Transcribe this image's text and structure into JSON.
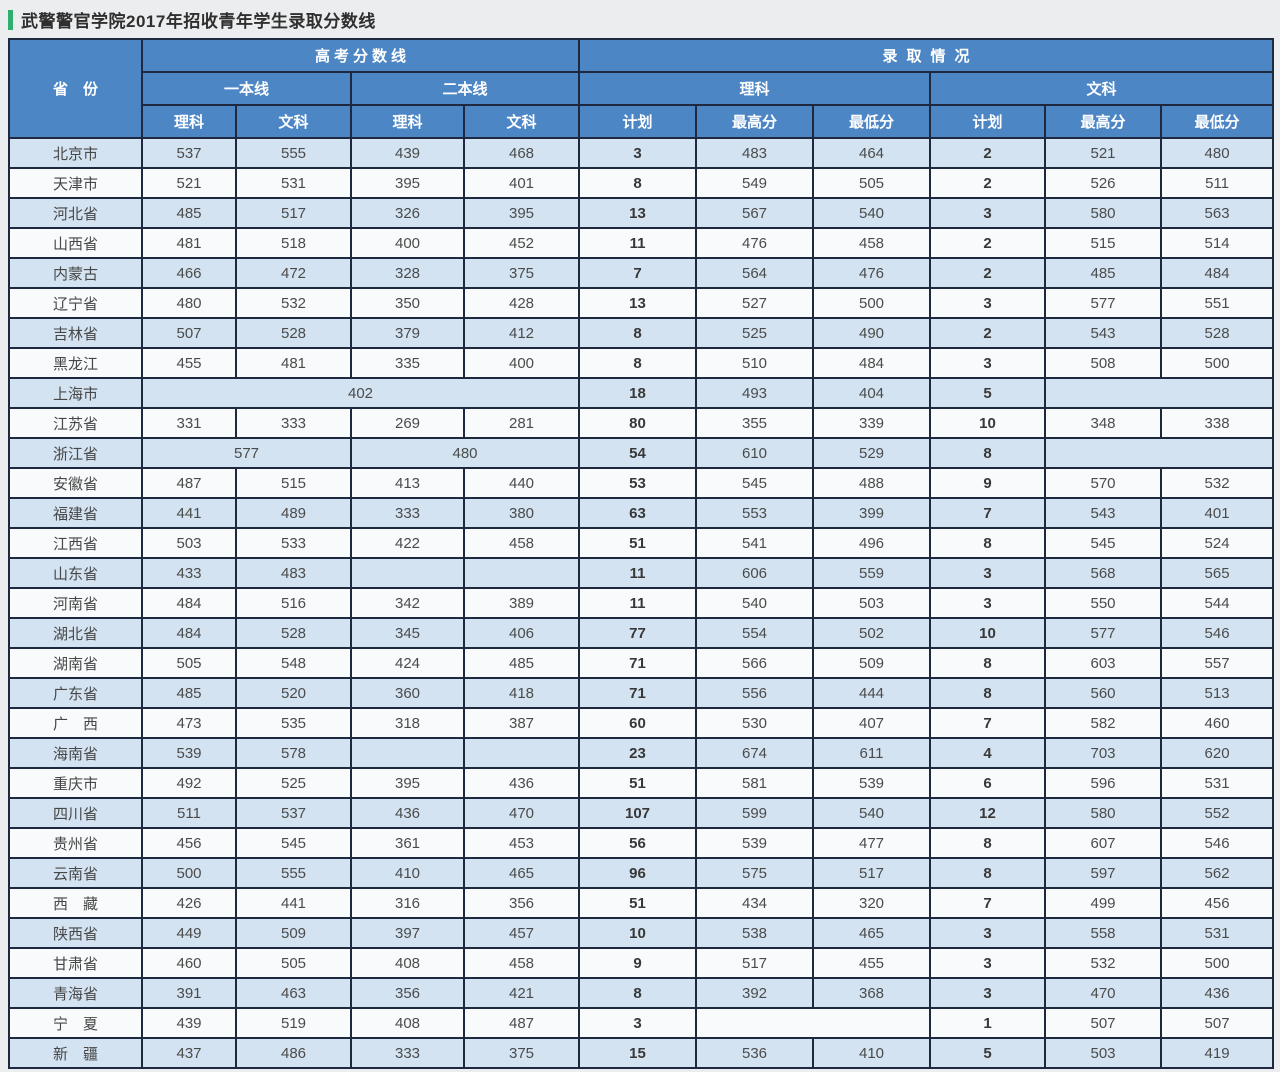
{
  "page_title": "武警警官学院2017年招收青年学生录取分数线",
  "colors": {
    "title_accent_green": "#2fae70",
    "header_blue": "#4d86c5",
    "border_navy": "#1e2940",
    "row_light_blue": "#d3e3f2",
    "row_white": "#f8fafb",
    "page_background": "#ecedef"
  },
  "chart_data": {
    "type": "table",
    "title": "武警警官学院2017年招收青年学生录取分数线",
    "header": {
      "province": "省　份",
      "gaokao_section": "高考分数线",
      "admission_section": "录取情况",
      "first_tier_line": "一本线",
      "second_tier_line": "二本线",
      "science": "理科",
      "arts": "文科",
      "plan": "计划",
      "highest_score": "最高分",
      "lowest_score": "最低分"
    },
    "column_order": [
      "省份",
      "一本线理科",
      "一本线文科",
      "二本线理科",
      "二本线文科",
      "录取理科计划",
      "录取理科最高分",
      "录取理科最低分",
      "录取文科计划",
      "录取文科最高分",
      "录取文科最低分"
    ],
    "rows": [
      {
        "name": "北京市",
        "cells": [
          {
            "t": "537"
          },
          {
            "t": "555"
          },
          {
            "t": "439"
          },
          {
            "t": "468"
          },
          {
            "t": "3"
          },
          {
            "t": "483"
          },
          {
            "t": "464"
          },
          {
            "t": "2"
          },
          {
            "t": "521"
          },
          {
            "t": "480"
          }
        ]
      },
      {
        "name": "天津市",
        "cells": [
          {
            "t": "521"
          },
          {
            "t": "531"
          },
          {
            "t": "395"
          },
          {
            "t": "401"
          },
          {
            "t": "8"
          },
          {
            "t": "549"
          },
          {
            "t": "505"
          },
          {
            "t": "2"
          },
          {
            "t": "526"
          },
          {
            "t": "511"
          }
        ]
      },
      {
        "name": "河北省",
        "cells": [
          {
            "t": "485"
          },
          {
            "t": "517"
          },
          {
            "t": "326"
          },
          {
            "t": "395"
          },
          {
            "t": "13"
          },
          {
            "t": "567"
          },
          {
            "t": "540"
          },
          {
            "t": "3"
          },
          {
            "t": "580"
          },
          {
            "t": "563"
          }
        ]
      },
      {
        "name": "山西省",
        "cells": [
          {
            "t": "481"
          },
          {
            "t": "518"
          },
          {
            "t": "400"
          },
          {
            "t": "452"
          },
          {
            "t": "11"
          },
          {
            "t": "476"
          },
          {
            "t": "458"
          },
          {
            "t": "2"
          },
          {
            "t": "515"
          },
          {
            "t": "514"
          }
        ]
      },
      {
        "name": "内蒙古",
        "cells": [
          {
            "t": "466"
          },
          {
            "t": "472"
          },
          {
            "t": "328"
          },
          {
            "t": "375"
          },
          {
            "t": "7"
          },
          {
            "t": "564"
          },
          {
            "t": "476"
          },
          {
            "t": "2"
          },
          {
            "t": "485"
          },
          {
            "t": "484"
          }
        ]
      },
      {
        "name": "辽宁省",
        "cells": [
          {
            "t": "480"
          },
          {
            "t": "532"
          },
          {
            "t": "350"
          },
          {
            "t": "428"
          },
          {
            "t": "13"
          },
          {
            "t": "527"
          },
          {
            "t": "500"
          },
          {
            "t": "3"
          },
          {
            "t": "577"
          },
          {
            "t": "551"
          }
        ]
      },
      {
        "name": "吉林省",
        "cells": [
          {
            "t": "507"
          },
          {
            "t": "528"
          },
          {
            "t": "379"
          },
          {
            "t": "412"
          },
          {
            "t": "8"
          },
          {
            "t": "525"
          },
          {
            "t": "490"
          },
          {
            "t": "2"
          },
          {
            "t": "543"
          },
          {
            "t": "528"
          }
        ]
      },
      {
        "name": "黑龙江",
        "cells": [
          {
            "t": "455"
          },
          {
            "t": "481"
          },
          {
            "t": "335"
          },
          {
            "t": "400"
          },
          {
            "t": "8"
          },
          {
            "t": "510"
          },
          {
            "t": "484"
          },
          {
            "t": "3"
          },
          {
            "t": "508"
          },
          {
            "t": "500"
          }
        ]
      },
      {
        "name": "上海市",
        "cells": [
          {
            "t": "402",
            "s": 4
          },
          {
            "t": "18"
          },
          {
            "t": "493"
          },
          {
            "t": "404"
          },
          {
            "t": "5"
          },
          {
            "t": "",
            "s": 2
          }
        ]
      },
      {
        "name": "江苏省",
        "cells": [
          {
            "t": "331"
          },
          {
            "t": "333"
          },
          {
            "t": "269"
          },
          {
            "t": "281"
          },
          {
            "t": "80"
          },
          {
            "t": "355"
          },
          {
            "t": "339"
          },
          {
            "t": "10"
          },
          {
            "t": "348"
          },
          {
            "t": "338"
          }
        ]
      },
      {
        "name": "浙江省",
        "cells": [
          {
            "t": "577",
            "s": 2
          },
          {
            "t": "480",
            "s": 2
          },
          {
            "t": "54"
          },
          {
            "t": "610"
          },
          {
            "t": "529"
          },
          {
            "t": "8"
          },
          {
            "t": "",
            "s": 2
          }
        ]
      },
      {
        "name": "安徽省",
        "cells": [
          {
            "t": "487"
          },
          {
            "t": "515"
          },
          {
            "t": "413"
          },
          {
            "t": "440"
          },
          {
            "t": "53"
          },
          {
            "t": "545"
          },
          {
            "t": "488"
          },
          {
            "t": "9"
          },
          {
            "t": "570"
          },
          {
            "t": "532"
          }
        ]
      },
      {
        "name": "福建省",
        "cells": [
          {
            "t": "441"
          },
          {
            "t": "489"
          },
          {
            "t": "333"
          },
          {
            "t": "380"
          },
          {
            "t": "63"
          },
          {
            "t": "553"
          },
          {
            "t": "399"
          },
          {
            "t": "7"
          },
          {
            "t": "543"
          },
          {
            "t": "401"
          }
        ]
      },
      {
        "name": "江西省",
        "cells": [
          {
            "t": "503"
          },
          {
            "t": "533"
          },
          {
            "t": "422"
          },
          {
            "t": "458"
          },
          {
            "t": "51"
          },
          {
            "t": "541"
          },
          {
            "t": "496"
          },
          {
            "t": "8"
          },
          {
            "t": "545"
          },
          {
            "t": "524"
          }
        ]
      },
      {
        "name": "山东省",
        "cells": [
          {
            "t": "433"
          },
          {
            "t": "483"
          },
          {
            "t": ""
          },
          {
            "t": ""
          },
          {
            "t": "11"
          },
          {
            "t": "606"
          },
          {
            "t": "559"
          },
          {
            "t": "3"
          },
          {
            "t": "568"
          },
          {
            "t": "565"
          }
        ]
      },
      {
        "name": "河南省",
        "cells": [
          {
            "t": "484"
          },
          {
            "t": "516"
          },
          {
            "t": "342"
          },
          {
            "t": "389"
          },
          {
            "t": "11"
          },
          {
            "t": "540"
          },
          {
            "t": "503"
          },
          {
            "t": "3"
          },
          {
            "t": "550"
          },
          {
            "t": "544"
          }
        ]
      },
      {
        "name": "湖北省",
        "cells": [
          {
            "t": "484"
          },
          {
            "t": "528"
          },
          {
            "t": "345"
          },
          {
            "t": "406"
          },
          {
            "t": "77"
          },
          {
            "t": "554"
          },
          {
            "t": "502"
          },
          {
            "t": "10"
          },
          {
            "t": "577"
          },
          {
            "t": "546"
          }
        ]
      },
      {
        "name": "湖南省",
        "cells": [
          {
            "t": "505"
          },
          {
            "t": "548"
          },
          {
            "t": "424"
          },
          {
            "t": "485"
          },
          {
            "t": "71"
          },
          {
            "t": "566"
          },
          {
            "t": "509"
          },
          {
            "t": "8"
          },
          {
            "t": "603"
          },
          {
            "t": "557"
          }
        ]
      },
      {
        "name": "广东省",
        "cells": [
          {
            "t": "485"
          },
          {
            "t": "520"
          },
          {
            "t": "360"
          },
          {
            "t": "418"
          },
          {
            "t": "71"
          },
          {
            "t": "556"
          },
          {
            "t": "444"
          },
          {
            "t": "8"
          },
          {
            "t": "560"
          },
          {
            "t": "513"
          }
        ]
      },
      {
        "name": "广　西",
        "cells": [
          {
            "t": "473"
          },
          {
            "t": "535"
          },
          {
            "t": "318"
          },
          {
            "t": "387"
          },
          {
            "t": "60"
          },
          {
            "t": "530"
          },
          {
            "t": "407"
          },
          {
            "t": "7"
          },
          {
            "t": "582"
          },
          {
            "t": "460"
          }
        ]
      },
      {
        "name": "海南省",
        "cells": [
          {
            "t": "539"
          },
          {
            "t": "578"
          },
          {
            "t": ""
          },
          {
            "t": ""
          },
          {
            "t": "23"
          },
          {
            "t": "674"
          },
          {
            "t": "611"
          },
          {
            "t": "4"
          },
          {
            "t": "703"
          },
          {
            "t": "620"
          }
        ]
      },
      {
        "name": "重庆市",
        "cells": [
          {
            "t": "492"
          },
          {
            "t": "525"
          },
          {
            "t": "395"
          },
          {
            "t": "436"
          },
          {
            "t": "51"
          },
          {
            "t": "581"
          },
          {
            "t": "539"
          },
          {
            "t": "6"
          },
          {
            "t": "596"
          },
          {
            "t": "531"
          }
        ]
      },
      {
        "name": "四川省",
        "cells": [
          {
            "t": "511"
          },
          {
            "t": "537"
          },
          {
            "t": "436"
          },
          {
            "t": "470"
          },
          {
            "t": "107"
          },
          {
            "t": "599"
          },
          {
            "t": "540"
          },
          {
            "t": "12"
          },
          {
            "t": "580"
          },
          {
            "t": "552"
          }
        ]
      },
      {
        "name": "贵州省",
        "cells": [
          {
            "t": "456"
          },
          {
            "t": "545"
          },
          {
            "t": "361"
          },
          {
            "t": "453"
          },
          {
            "t": "56"
          },
          {
            "t": "539"
          },
          {
            "t": "477"
          },
          {
            "t": "8"
          },
          {
            "t": "607"
          },
          {
            "t": "546"
          }
        ]
      },
      {
        "name": "云南省",
        "cells": [
          {
            "t": "500"
          },
          {
            "t": "555"
          },
          {
            "t": "410"
          },
          {
            "t": "465"
          },
          {
            "t": "96"
          },
          {
            "t": "575"
          },
          {
            "t": "517"
          },
          {
            "t": "8"
          },
          {
            "t": "597"
          },
          {
            "t": "562"
          }
        ]
      },
      {
        "name": "西　藏",
        "cells": [
          {
            "t": "426"
          },
          {
            "t": "441"
          },
          {
            "t": "316"
          },
          {
            "t": "356"
          },
          {
            "t": "51"
          },
          {
            "t": "434"
          },
          {
            "t": "320"
          },
          {
            "t": "7"
          },
          {
            "t": "499"
          },
          {
            "t": "456"
          }
        ]
      },
      {
        "name": "陕西省",
        "cells": [
          {
            "t": "449"
          },
          {
            "t": "509"
          },
          {
            "t": "397"
          },
          {
            "t": "457"
          },
          {
            "t": "10"
          },
          {
            "t": "538"
          },
          {
            "t": "465"
          },
          {
            "t": "3"
          },
          {
            "t": "558"
          },
          {
            "t": "531"
          }
        ]
      },
      {
        "name": "甘肃省",
        "cells": [
          {
            "t": "460"
          },
          {
            "t": "505"
          },
          {
            "t": "408"
          },
          {
            "t": "458"
          },
          {
            "t": "9"
          },
          {
            "t": "517"
          },
          {
            "t": "455"
          },
          {
            "t": "3"
          },
          {
            "t": "532"
          },
          {
            "t": "500"
          }
        ]
      },
      {
        "name": "青海省",
        "cells": [
          {
            "t": "391"
          },
          {
            "t": "463"
          },
          {
            "t": "356"
          },
          {
            "t": "421"
          },
          {
            "t": "8"
          },
          {
            "t": "392"
          },
          {
            "t": "368"
          },
          {
            "t": "3"
          },
          {
            "t": "470"
          },
          {
            "t": "436"
          }
        ]
      },
      {
        "name": "宁　夏",
        "cells": [
          {
            "t": "439"
          },
          {
            "t": "519"
          },
          {
            "t": "408"
          },
          {
            "t": "487"
          },
          {
            "t": "3"
          },
          {
            "t": "",
            "s": 2
          },
          {
            "t": "1"
          },
          {
            "t": "507"
          },
          {
            "t": "507"
          }
        ]
      },
      {
        "name": "新　疆",
        "cells": [
          {
            "t": "437"
          },
          {
            "t": "486"
          },
          {
            "t": "333"
          },
          {
            "t": "375"
          },
          {
            "t": "15"
          },
          {
            "t": "536"
          },
          {
            "t": "410"
          },
          {
            "t": "5"
          },
          {
            "t": "503"
          },
          {
            "t": "419"
          }
        ]
      }
    ]
  }
}
